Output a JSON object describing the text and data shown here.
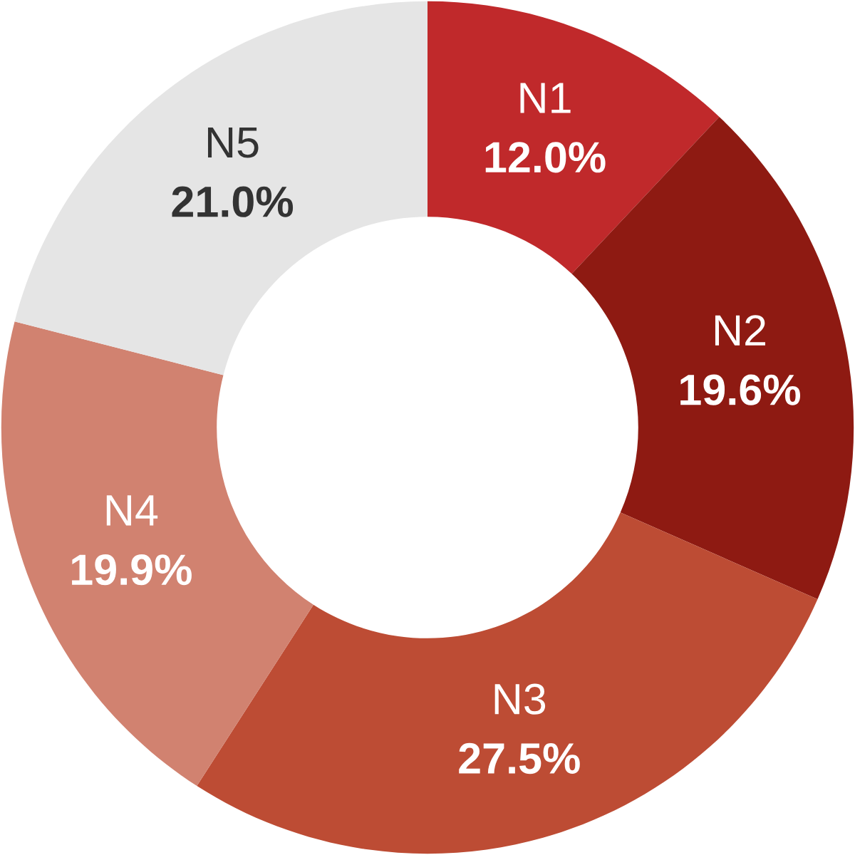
{
  "chart_data": {
    "type": "donut",
    "categories": [
      "N1",
      "N2",
      "N3",
      "N4",
      "N5"
    ],
    "values": [
      12.0,
      19.6,
      27.5,
      19.9,
      21.0
    ],
    "colors": [
      "#c0292b",
      "#8e1a12",
      "#bd4c34",
      "#d18270",
      "#e5e5e5"
    ],
    "value_labels": [
      "12.0%",
      "19.6%",
      "27.5%",
      "19.9%",
      "21.0%"
    ]
  }
}
